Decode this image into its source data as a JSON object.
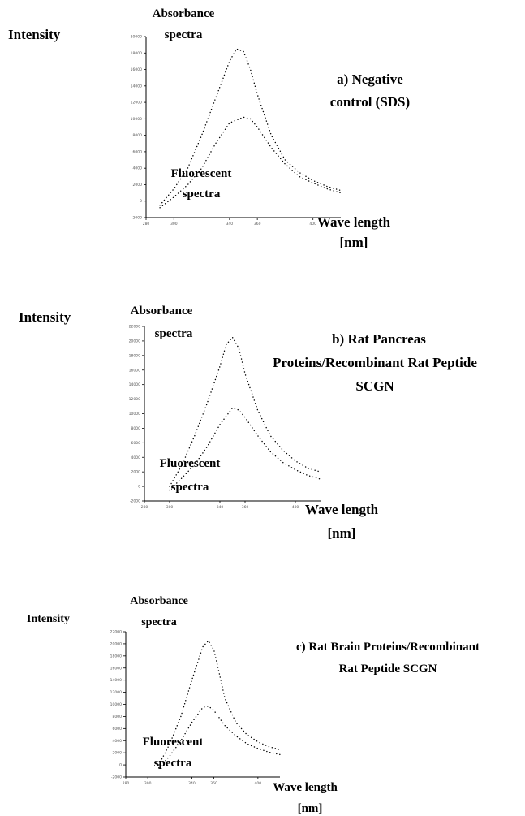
{
  "chart_data": [
    {
      "type": "line",
      "title": "a) Negative control (SDS)",
      "title_lines": [
        "a) Negative",
        "control (SDS)"
      ],
      "ylabel": "Intensity",
      "xlabel": "Wave length [nm]",
      "xlabel_lines": [
        "Wave length",
        "[nm]"
      ],
      "annotations": {
        "absorbance_lines": [
          "Absorbance",
          "spectra"
        ],
        "fluorescent_lines": [
          "Fluorescent",
          "spectra"
        ]
      },
      "xlim": [
        280,
        420
      ],
      "ylim": [
        -2000,
        20000
      ],
      "x_ticks": [
        "280",
        "300",
        "340",
        "360",
        "400"
      ],
      "y_ticks": [
        "-2000",
        "0",
        "2000",
        "4000",
        "6000",
        "8000",
        "10000",
        "12000",
        "14000",
        "16000",
        "18000",
        "20000"
      ],
      "series": [
        {
          "x": [
            290,
            300,
            310,
            320,
            330,
            340,
            345,
            350,
            355,
            360,
            370,
            380,
            390,
            400,
            410,
            420
          ],
          "y": [
            -500,
            1500,
            4000,
            8000,
            12500,
            17000,
            18500,
            18200,
            16000,
            13000,
            8000,
            5000,
            3500,
            2500,
            1800,
            1300
          ]
        },
        {
          "x": [
            290,
            300,
            310,
            320,
            330,
            340,
            350,
            355,
            360,
            370,
            380,
            390,
            400,
            410,
            420
          ],
          "y": [
            -800,
            500,
            2000,
            4000,
            7000,
            9500,
            10200,
            10000,
            9000,
            6500,
            4500,
            3000,
            2200,
            1500,
            1000
          ]
        }
      ]
    },
    {
      "type": "line",
      "title": "b) Rat Pancreas Proteins/Recombinant Rat Peptide SCGN",
      "title_lines": [
        "b) Rat Pancreas",
        "Proteins/Recombinant Rat Peptide",
        "SCGN"
      ],
      "ylabel": "Intensity",
      "xlabel": "Wave length [nm]",
      "xlabel_lines": [
        "Wave length",
        "[nm]"
      ],
      "annotations": {
        "absorbance_lines": [
          "Absorbance",
          "spectra"
        ],
        "fluorescent_lines": [
          "Fluorescent",
          "spectra"
        ]
      },
      "xlim": [
        280,
        420
      ],
      "ylim": [
        -2000,
        22000
      ],
      "x_ticks": [
        "280",
        "300",
        "340",
        "360",
        "400"
      ],
      "y_ticks": [
        "-2000",
        "0",
        "2000",
        "4000",
        "6000",
        "8000",
        "10000",
        "12000",
        "14000",
        "16000",
        "18000",
        "20000",
        "22000"
      ],
      "series": [
        {
          "x": [
            300,
            310,
            320,
            330,
            340,
            345,
            350,
            355,
            360,
            370,
            380,
            390,
            400,
            410,
            420
          ],
          "y": [
            0,
            3000,
            7000,
            11500,
            16500,
            19500,
            20500,
            19000,
            15500,
            10500,
            7000,
            5000,
            3500,
            2500,
            2000
          ]
        },
        {
          "x": [
            300,
            310,
            320,
            330,
            340,
            350,
            355,
            360,
            370,
            380,
            390,
            400,
            410,
            420
          ],
          "y": [
            -500,
            1200,
            3000,
            5500,
            8500,
            10800,
            10500,
            9500,
            7000,
            4800,
            3300,
            2300,
            1500,
            1000
          ]
        }
      ]
    },
    {
      "type": "line",
      "title": "c) Rat Brain Proteins/Recombinant Rat Peptide SCGN",
      "title_lines": [
        "c) Rat Brain Proteins/Recombinant",
        "Rat Peptide SCGN"
      ],
      "ylabel": "Intensity",
      "xlabel": "Wave length [nm]",
      "xlabel_lines": [
        "Wave length",
        "[nm]"
      ],
      "annotations": {
        "absorbance_lines": [
          "Absorbance",
          "spectra"
        ],
        "fluorescent_lines": [
          "Fluorescent",
          "spectra"
        ]
      },
      "xlim": [
        280,
        420
      ],
      "ylim": [
        -2000,
        22000
      ],
      "x_ticks": [
        "280",
        "300",
        "340",
        "360",
        "400"
      ],
      "y_ticks": [
        "-2000",
        "0",
        "2000",
        "4000",
        "6000",
        "8000",
        "10000",
        "12000",
        "14000",
        "16000",
        "18000",
        "20000",
        "22000"
      ],
      "series": [
        {
          "x": [
            310,
            320,
            330,
            340,
            350,
            355,
            360,
            365,
            370,
            380,
            390,
            400,
            410,
            420
          ],
          "y": [
            0,
            3500,
            8000,
            14000,
            19500,
            20500,
            19000,
            15000,
            11000,
            7000,
            5000,
            3800,
            3000,
            2500
          ]
        },
        {
          "x": [
            310,
            320,
            330,
            340,
            350,
            355,
            360,
            370,
            380,
            390,
            400,
            410,
            420
          ],
          "y": [
            -500,
            1500,
            4000,
            7000,
            9500,
            9700,
            9000,
            6500,
            4800,
            3500,
            2700,
            2100,
            1700
          ]
        }
      ]
    }
  ]
}
